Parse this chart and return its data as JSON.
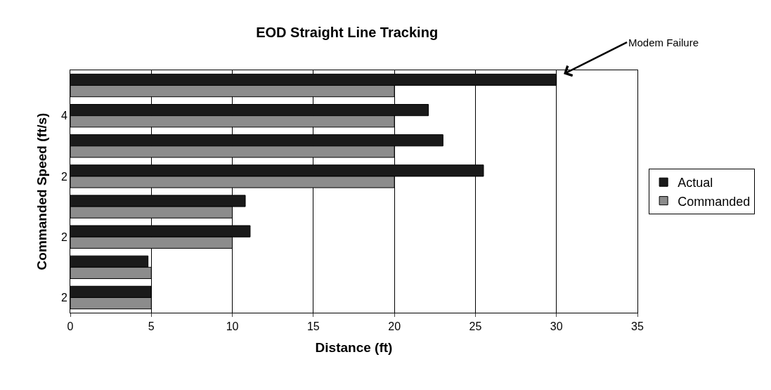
{
  "chart_data": {
    "type": "bar",
    "orientation": "horizontal",
    "title": "EOD Straight Line Tracking",
    "xlabel": "Distance (ft)",
    "ylabel": "Commanded Speed (ft/s)",
    "categories": [
      null,
      "4",
      null,
      "2",
      null,
      "2",
      null,
      "2"
    ],
    "series": [
      {
        "name": "Actual",
        "color": "#1a1a1a",
        "values": [
          30,
          22.1,
          23,
          25.5,
          10.8,
          11.1,
          4.8,
          5
        ]
      },
      {
        "name": "Commanded",
        "color": "#8c8c8c",
        "values": [
          20,
          20,
          20,
          20,
          10,
          10,
          5,
          5
        ]
      }
    ],
    "xlim": [
      0,
      35
    ],
    "xticks": [
      0,
      5,
      10,
      15,
      20,
      25,
      30,
      35
    ],
    "grid": "x",
    "legend": "right",
    "annotations": [
      "Modem Failure"
    ]
  }
}
